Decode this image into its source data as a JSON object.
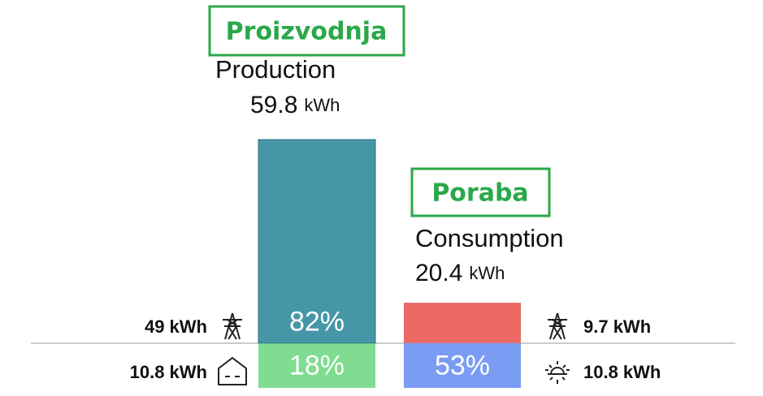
{
  "production": {
    "annotation": "Proizvodnja",
    "title": "Production",
    "value": 59.8,
    "unit": "kWh",
    "segments": [
      {
        "amount": 49,
        "amount_label": "49 kWh",
        "percent_label": "82%",
        "color": "#4597a8"
      },
      {
        "amount": 10.8,
        "amount_label": "10.8 kWh",
        "percent_label": "18%",
        "color": "#80dc90"
      }
    ]
  },
  "consumption": {
    "annotation": "Poraba",
    "title": "Consumption",
    "value": 20.4,
    "unit": "kWh",
    "segments": [
      {
        "amount": 9.7,
        "amount_label": "9.7 kWh",
        "color": "#ec6a66"
      },
      {
        "amount": 10.8,
        "amount_label": "10.8 kWh",
        "percent_label": "53%",
        "color": "#7b9cf3"
      }
    ]
  }
}
